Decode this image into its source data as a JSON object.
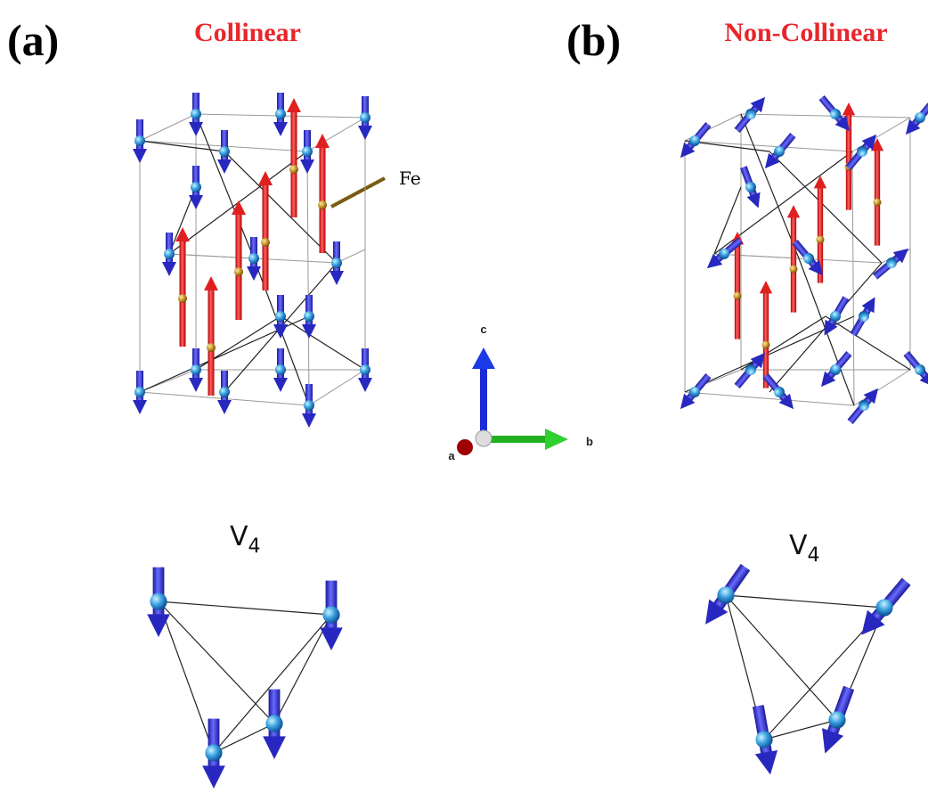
{
  "panels": [
    {
      "label": "(a)",
      "title": "Collinear",
      "motif": {
        "symbol": "V",
        "subscript": "4"
      }
    },
    {
      "label": "(b)",
      "title": "Non-Collinear",
      "motif": {
        "symbol": "V",
        "subscript": "4"
      }
    }
  ],
  "atom_label": "Fe",
  "axes": {
    "c": "c",
    "a": "a",
    "b": "b"
  }
}
